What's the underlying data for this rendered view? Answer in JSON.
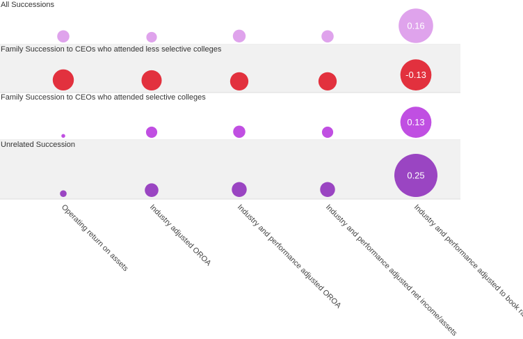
{
  "chart_data": {
    "type": "bubble",
    "columns": [
      "Operating return on assets",
      "Industry adjusted OROA",
      "Industry and performance adjusted OROA",
      "Industry and performance adjusted net income/assets",
      "Industry and performance adjusted to book ratio"
    ],
    "rows": [
      {
        "title": "All Successions",
        "shaded": false,
        "color": "#dfa3ec",
        "values": [
          0.02,
          0.015,
          0.022,
          0.02,
          0.16
        ],
        "labels": [
          "",
          "",
          "",
          "",
          "0.16"
        ]
      },
      {
        "title": "Family Succession to CEOs who attended less selective colleges",
        "shaded": true,
        "color": "#e2313e",
        "values": [
          -0.06,
          -0.055,
          -0.045,
          -0.045,
          -0.13
        ],
        "labels": [
          "",
          "",
          "",
          "",
          "-0.13"
        ]
      },
      {
        "title": "Family Succession to CEOs who attended selective colleges",
        "shaded": false,
        "color": "#c04fe2",
        "values": [
          0.002,
          0.017,
          0.02,
          0.017,
          0.13
        ],
        "labels": [
          "",
          "",
          "",
          "",
          "0.13"
        ]
      },
      {
        "title": "Unrelated Succession",
        "shaded": true,
        "color": "#9a45c2",
        "values": [
          0.006,
          0.025,
          0.03,
          0.03,
          0.25
        ],
        "labels": [
          "",
          "",
          "",
          "",
          "0.25"
        ]
      }
    ]
  }
}
